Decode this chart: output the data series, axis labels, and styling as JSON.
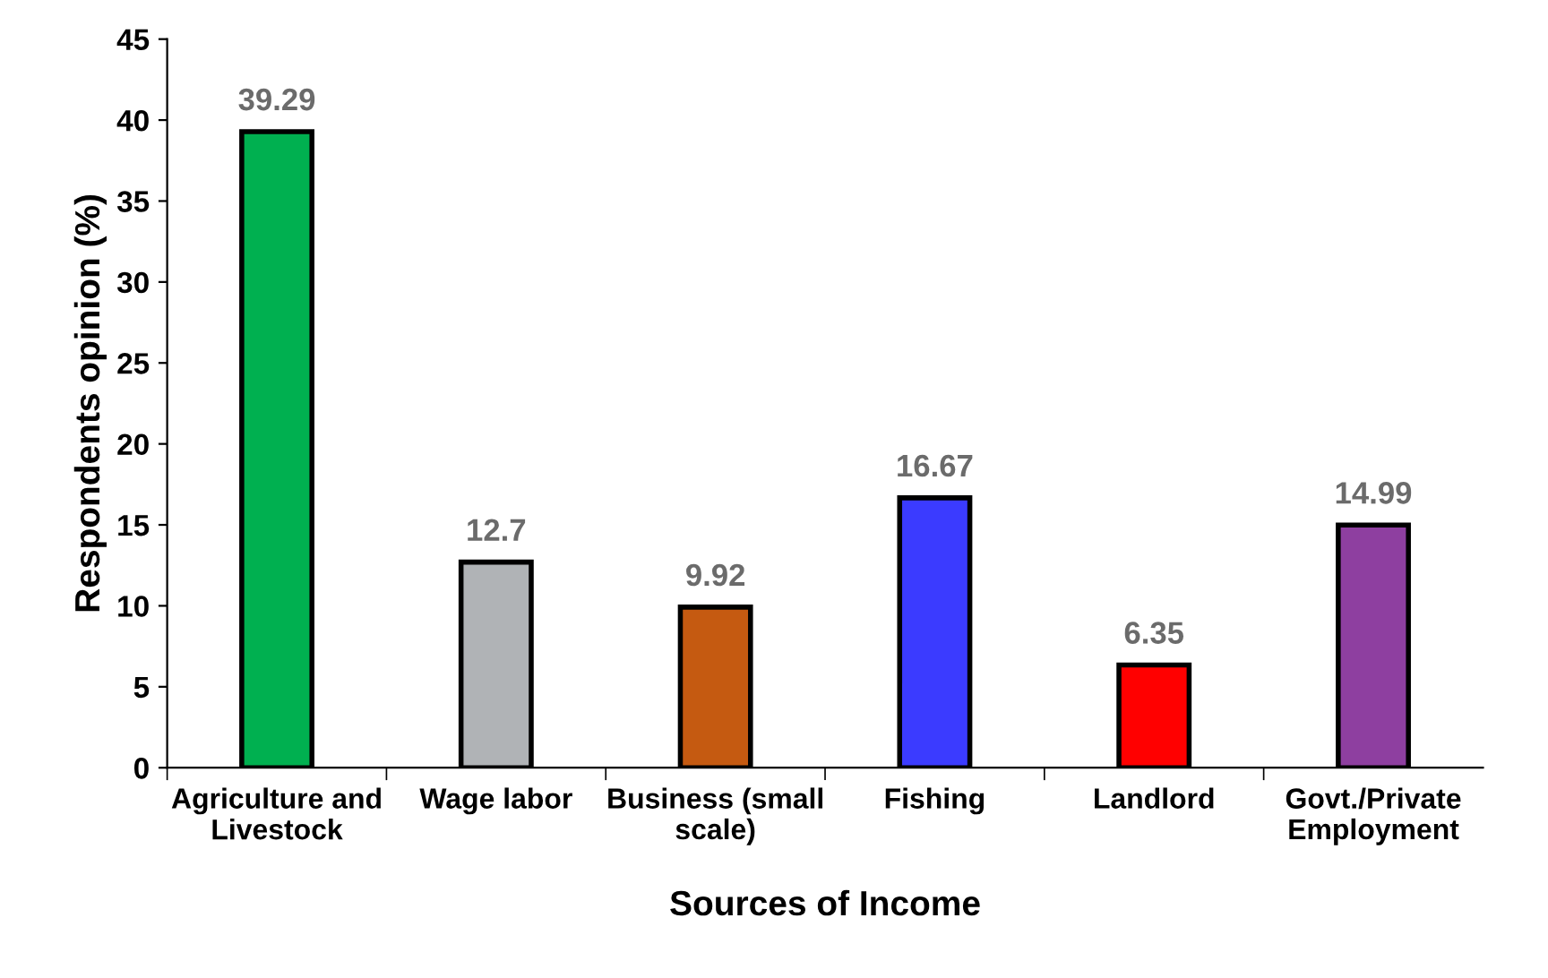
{
  "chart_data": {
    "type": "bar",
    "xlabel": "Sources of Income",
    "ylabel": "Respondents opinion (%)",
    "categories": [
      "Agriculture and\nLivestock",
      "Wage labor",
      "Business (small\nscale)",
      "Fishing",
      "Landlord",
      "Govt./Private\nEmployment"
    ],
    "values": [
      39.29,
      12.7,
      9.92,
      16.67,
      6.35,
      14.99
    ],
    "colors": [
      "#00b050",
      "#b0b3b6",
      "#c55a11",
      "#3b3bff",
      "#ff0000",
      "#8e3fa0"
    ],
    "ylim": [
      0,
      45
    ],
    "yticks": [
      0,
      5,
      10,
      15,
      20,
      25,
      30,
      35,
      40,
      45
    ],
    "grid": false,
    "data_labels": true
  }
}
